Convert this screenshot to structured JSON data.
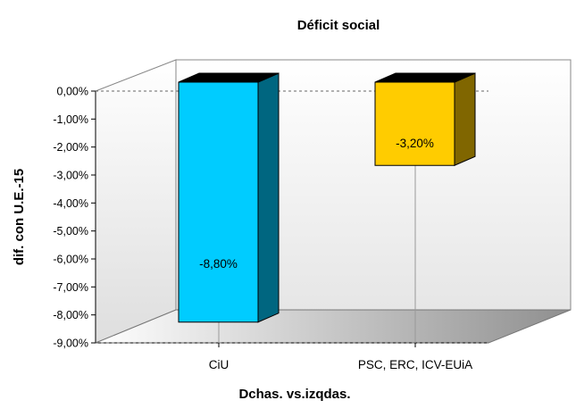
{
  "chart_data": {
    "type": "bar",
    "title": "Déficit social",
    "xlabel": "Dchas. vs.izqdas.",
    "ylabel": "dif. con U.E.-15",
    "categories": [
      "CiU",
      "PSC, ERC, ICV-EUiA"
    ],
    "values": [
      -8.8,
      -3.2
    ],
    "data_labels": [
      "-8,80%",
      "-3,20%"
    ],
    "ylim": [
      -9,
      0
    ],
    "yticks": [
      0,
      -1,
      -2,
      -3,
      -4,
      -5,
      -6,
      -7,
      -8,
      -9
    ],
    "ytick_labels": [
      "0,00%",
      "-1,00%",
      "-2,00%",
      "-3,00%",
      "-4,00%",
      "-5,00%",
      "-6,00%",
      "-7,00%",
      "-8,00%",
      "-9,00%"
    ],
    "colors": [
      "#00ccff",
      "#ffcc00"
    ],
    "side_colors": [
      "#006680",
      "#806600"
    ],
    "grid": false,
    "legend": "none"
  }
}
